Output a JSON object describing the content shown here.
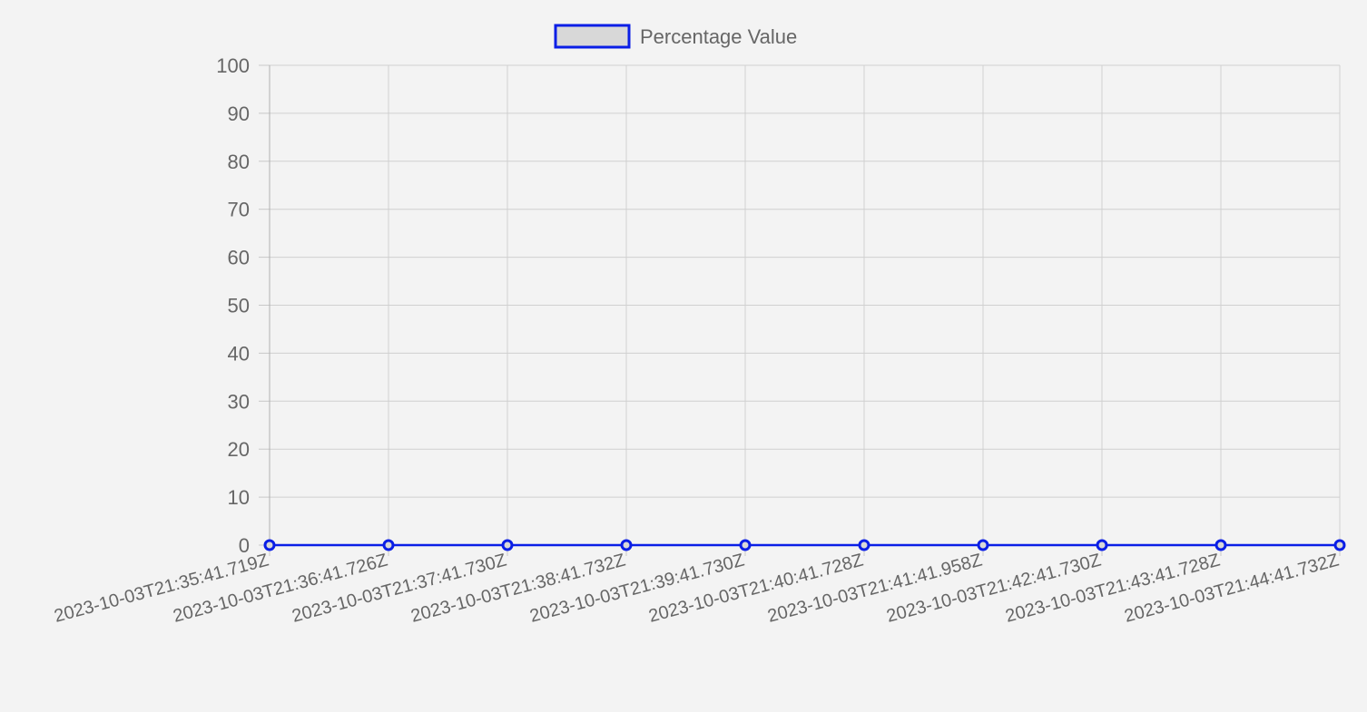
{
  "chart_data": {
    "type": "line",
    "title": "",
    "xlabel": "",
    "ylabel": "",
    "ylim": [
      0,
      100
    ],
    "yticks": [
      0,
      10,
      20,
      30,
      40,
      50,
      60,
      70,
      80,
      90,
      100
    ],
    "grid": true,
    "legend_position": "top-center",
    "categories": [
      "2023-10-03T21:35:41.719Z",
      "2023-10-03T21:36:41.726Z",
      "2023-10-03T21:37:41.730Z",
      "2023-10-03T21:38:41.732Z",
      "2023-10-03T21:39:41.730Z",
      "2023-10-03T21:40:41.728Z",
      "2023-10-03T21:41:41.958Z",
      "2023-10-03T21:42:41.730Z",
      "2023-10-03T21:43:41.728Z",
      "2023-10-03T21:44:41.732Z"
    ],
    "series": [
      {
        "name": "Percentage Value",
        "values": [
          0,
          0,
          0,
          0,
          0,
          0,
          0,
          0,
          0,
          0
        ],
        "line_color": "#0a1ee6",
        "fill_color": "#d8d8d8"
      }
    ]
  }
}
